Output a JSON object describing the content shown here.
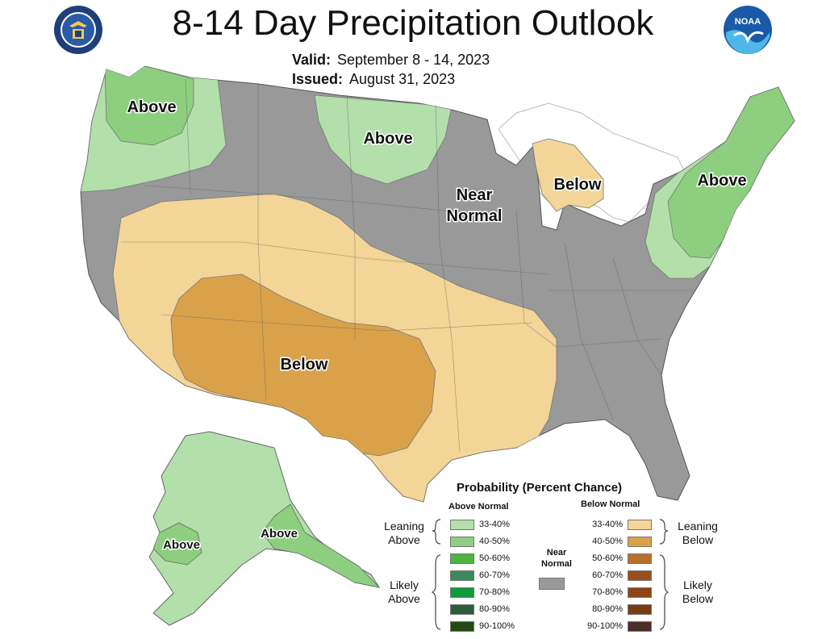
{
  "title": "8-14 Day Precipitation Outlook",
  "valid_label": "Valid:",
  "valid_value": "September 8 - 14, 2023",
  "issued_label": "Issued:",
  "issued_value": "August 31, 2023",
  "logos": {
    "left": "dept-commerce-seal-icon",
    "right": "noaa-logo-icon",
    "noaa_text": "NOAA"
  },
  "map_labels": {
    "pnw": "Above",
    "dakota": "Above",
    "northeast": "Above",
    "near_normal_1": "Near",
    "near_normal_2": "Normal",
    "michigan": "Below",
    "southwest": "Below",
    "alaska_w": "Above",
    "alaska_se": "Above"
  },
  "colors": {
    "near_normal": "#999999",
    "leaning_above": "#b2dfaa",
    "above_40_50": "#8dcf7f",
    "leaning_below": "#f2d597",
    "below_40_50": "#d9a24a",
    "water": "#ffffff"
  },
  "legend": {
    "title": "Probability (Percent Chance)",
    "above_header": "Above Normal",
    "below_header": "Below Normal",
    "near_header_1": "Near",
    "near_header_2": "Normal",
    "above_rows": [
      {
        "label": "33-40%",
        "color": "#b2dfaa"
      },
      {
        "label": "40-50%",
        "color": "#8dcf7f"
      },
      {
        "label": "50-60%",
        "color": "#4fb442"
      },
      {
        "label": "60-70%",
        "color": "#3b8a5e"
      },
      {
        "label": "70-80%",
        "color": "#109a3c"
      },
      {
        "label": "80-90%",
        "color": "#2d5c3a"
      },
      {
        "label": "90-100%",
        "color": "#234a14"
      }
    ],
    "below_rows": [
      {
        "label": "33-40%",
        "color": "#f2d597"
      },
      {
        "label": "40-50%",
        "color": "#d9a24a"
      },
      {
        "label": "50-60%",
        "color": "#b6702e"
      },
      {
        "label": "60-70%",
        "color": "#9a4e1f"
      },
      {
        "label": "70-80%",
        "color": "#8b4518"
      },
      {
        "label": "80-90%",
        "color": "#7a3a12"
      },
      {
        "label": "90-100%",
        "color": "#4a3028"
      }
    ],
    "near_color": "#999999",
    "leaning_above_1": "Leaning",
    "leaning_above_2": "Above",
    "likely_above_1": "Likely",
    "likely_above_2": "Above",
    "leaning_below_1": "Leaning",
    "leaning_below_2": "Below",
    "likely_below_1": "Likely",
    "likely_below_2": "Below"
  }
}
